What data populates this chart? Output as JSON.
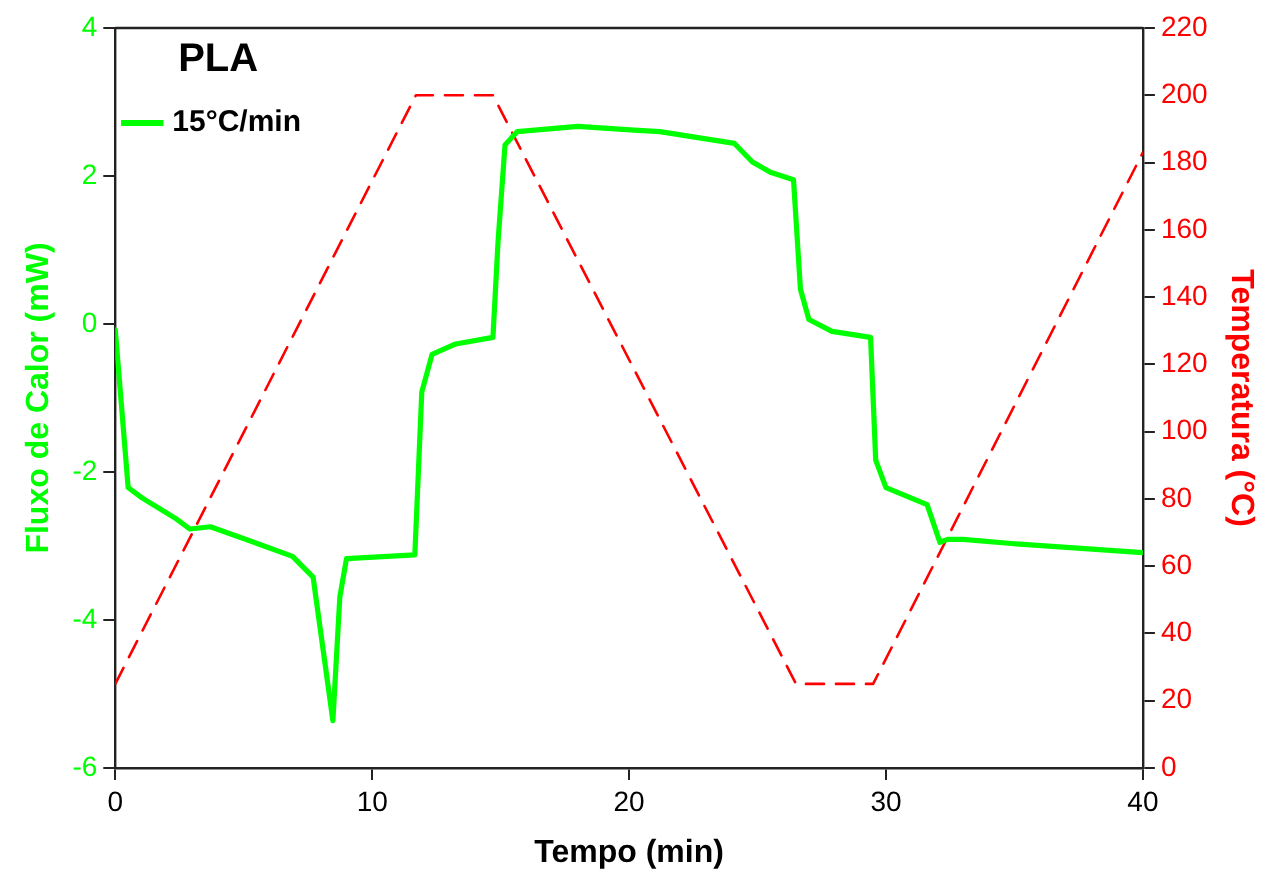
{
  "chart_data": {
    "type": "line",
    "xlabel": "Tempo (min)",
    "ylabel": "Fluxo de Calor (mW)",
    "y2label": "Temperatura (°C)",
    "legend_title": "PLA",
    "legend": "top left",
    "grid": false,
    "marker": "none",
    "xlim": [
      0,
      40
    ],
    "xticks": [
      0,
      10,
      20,
      30,
      40
    ],
    "ylim": [
      -6,
      4
    ],
    "yticks": [
      -6,
      -4,
      -2,
      0,
      2,
      4
    ],
    "y2lim": [
      0,
      220
    ],
    "y2ticks": [
      0,
      20,
      40,
      60,
      80,
      100,
      120,
      140,
      160,
      180,
      200,
      220
    ],
    "series": [
      {
        "name": "15°C/min",
        "color": "#00ff00",
        "line_style": "solid",
        "x": [
          0,
          0.5,
          1.04,
          2.36,
          2.9,
          3.7,
          5.55,
          6.9,
          7.7,
          8.47,
          8.74,
          9.0,
          11.66,
          11.93,
          12.33,
          13.25,
          14.7,
          14.9,
          15.17,
          15.65,
          18.0,
          20.2,
          21.2,
          24.1,
          24.8,
          25.5,
          26.4,
          26.67,
          27.0,
          27.9,
          29.4,
          29.6,
          30.0,
          31.6,
          32.1,
          32.4,
          33.0,
          35.0,
          40
        ],
        "values": [
          -0.08,
          -2.21,
          -2.35,
          -2.63,
          -2.77,
          -2.74,
          -2.97,
          -3.14,
          -3.42,
          -5.36,
          -3.69,
          -3.17,
          -3.12,
          -0.92,
          -0.41,
          -0.27,
          -0.18,
          1.12,
          2.42,
          2.6,
          2.67,
          2.62,
          2.6,
          2.44,
          2.19,
          2.05,
          1.95,
          0.47,
          0.06,
          -0.1,
          -0.18,
          -1.84,
          -2.21,
          -2.44,
          -2.95,
          -2.91,
          -2.91,
          -2.97,
          -3.09
        ]
      },
      {
        "color": "#ff0000",
        "axis": "y2",
        "line_style": "dashed",
        "x": [
          0,
          11.7,
          14.7,
          26.5,
          29.5,
          40
        ],
        "values": [
          25,
          200,
          200,
          25,
          25,
          183
        ]
      }
    ]
  }
}
